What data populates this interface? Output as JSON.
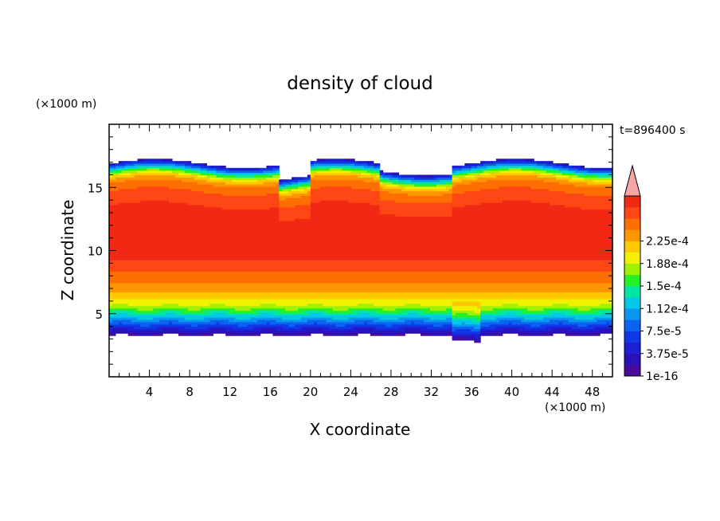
{
  "chart_data": {
    "type": "heatmap",
    "title": "density of cloud",
    "xlabel": "X coordinate",
    "ylabel": "Z coordinate",
    "x_unit": "(×1000 m)",
    "y_unit": "(×1000 m)",
    "time_label": "t=896400 s",
    "xlim": [
      0,
      50
    ],
    "ylim": [
      0,
      20
    ],
    "x_ticks": [
      4,
      8,
      12,
      16,
      20,
      24,
      28,
      32,
      36,
      40,
      44,
      48
    ],
    "y_ticks": [
      5,
      10,
      15
    ],
    "grid": false,
    "colorbar": {
      "labels": [
        "1e-16",
        "3.75e-5",
        "7.5e-5",
        "1.12e-4",
        "1.5e-4",
        "1.88e-4",
        "2.25e-4"
      ],
      "colors": [
        "#4a0a9a",
        "#2a12b8",
        "#1e1ed2",
        "#0f38e6",
        "#0a64f0",
        "#0a96f0",
        "#00c8e6",
        "#00e6a0",
        "#28f028",
        "#a0f000",
        "#f0f000",
        "#ffc800",
        "#ff9600",
        "#ff6e00",
        "#ff4614",
        "#f02814"
      ],
      "overflow_color": "#f7a6a6"
    },
    "cloud_profile": {
      "z": [
        3.3,
        3.8,
        4.3,
        4.8,
        5.3,
        5.8,
        6.4,
        7.0,
        7.8,
        8.8,
        9.6,
        13.0,
        14.2,
        15.2,
        15.8,
        16.3,
        16.9
      ],
      "level": [
        0,
        2,
        4,
        6,
        8,
        10,
        11,
        12,
        13,
        14,
        15,
        15,
        14,
        13,
        11,
        7,
        1
      ]
    }
  }
}
